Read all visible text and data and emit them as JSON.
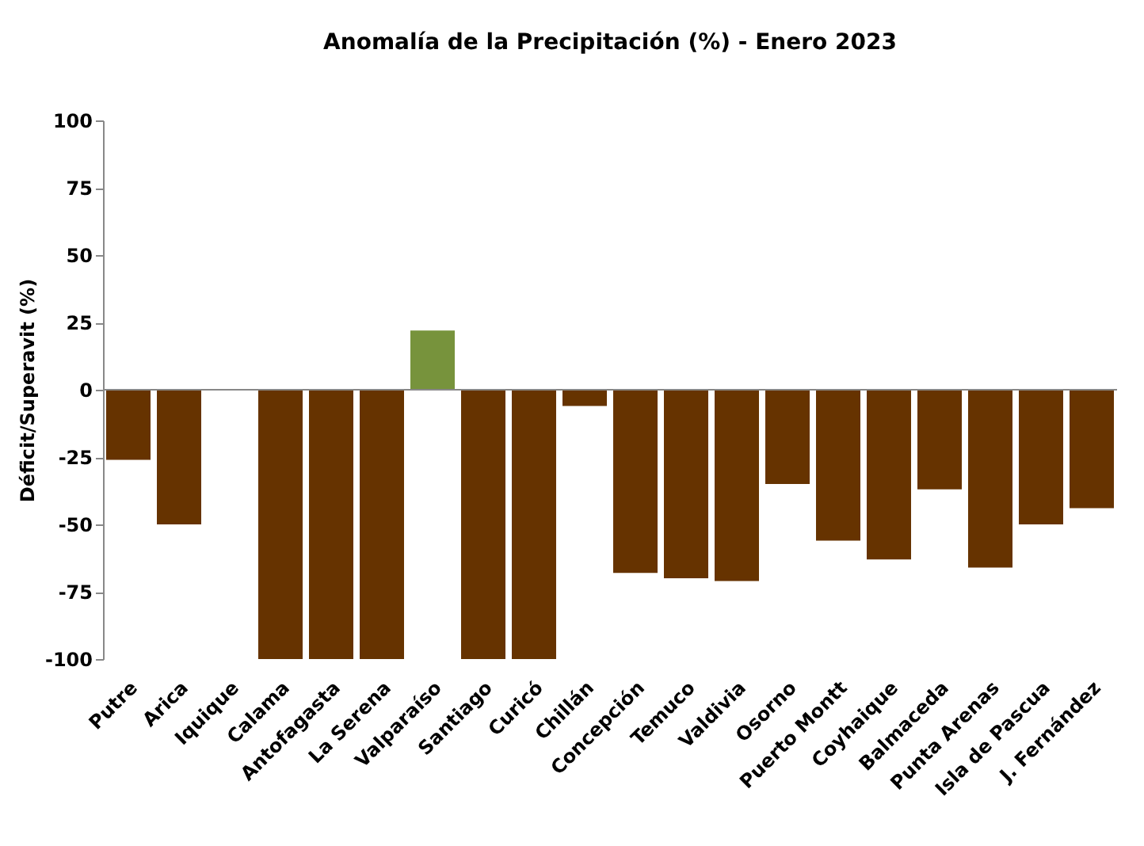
{
  "chart_data": {
    "type": "bar",
    "title": "Anomalía de la Precipitación (%) - Enero 2023",
    "ylabel": "Déficit/Superavit (%)",
    "categories": [
      "Putre",
      "Arica",
      "Iquique",
      "Calama",
      "Antofagasta",
      "La Serena",
      "Valparaíso",
      "Santiago",
      "Curicó",
      "Chillán",
      "Concepción",
      "Temuco",
      "Valdivia",
      "Osorno",
      "Puerto Montt",
      "Coyhaique",
      "Balmaceda",
      "Punta Arenas",
      "Isla de Pascua",
      "J. Fernández"
    ],
    "values": [
      -26,
      -50,
      0,
      -100,
      -100,
      -100,
      22,
      -100,
      -100,
      -6,
      -68,
      -70,
      -71,
      -35,
      -56,
      -63,
      -37,
      -66,
      -50,
      -44
    ],
    "colors": [
      "#663300",
      "#663300",
      "#663300",
      "#663300",
      "#663300",
      "#663300",
      "#77933c",
      "#663300",
      "#663300",
      "#663300",
      "#663300",
      "#663300",
      "#663300",
      "#663300",
      "#663300",
      "#663300",
      "#663300",
      "#663300",
      "#663300",
      "#663300"
    ],
    "ylim": [
      -100,
      100
    ],
    "yticks": [
      -100,
      -75,
      -50,
      -25,
      0,
      25,
      50,
      75,
      100
    ],
    "legend": false
  }
}
